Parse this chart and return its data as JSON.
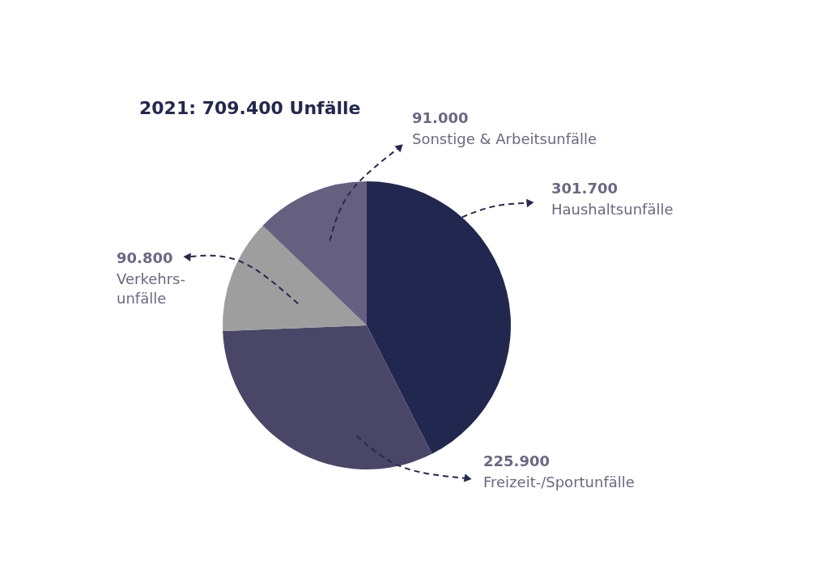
{
  "chart_data": {
    "type": "pie",
    "title": "2021: 709.400 Unfälle",
    "categories": [
      "Haushaltsunfälle",
      "Freizeit-/Sportunfälle",
      "Verkehrs-\nunfälle",
      "Sonstige & Arbeitsunfälle"
    ],
    "values": [
      301700,
      225900,
      90800,
      91000
    ],
    "colors": [
      "#21274f",
      "#4a4668",
      "#9e9e9e",
      "#655f80"
    ],
    "value_labels": [
      "301.700",
      "225.900",
      "90.800",
      "91.000"
    ]
  }
}
